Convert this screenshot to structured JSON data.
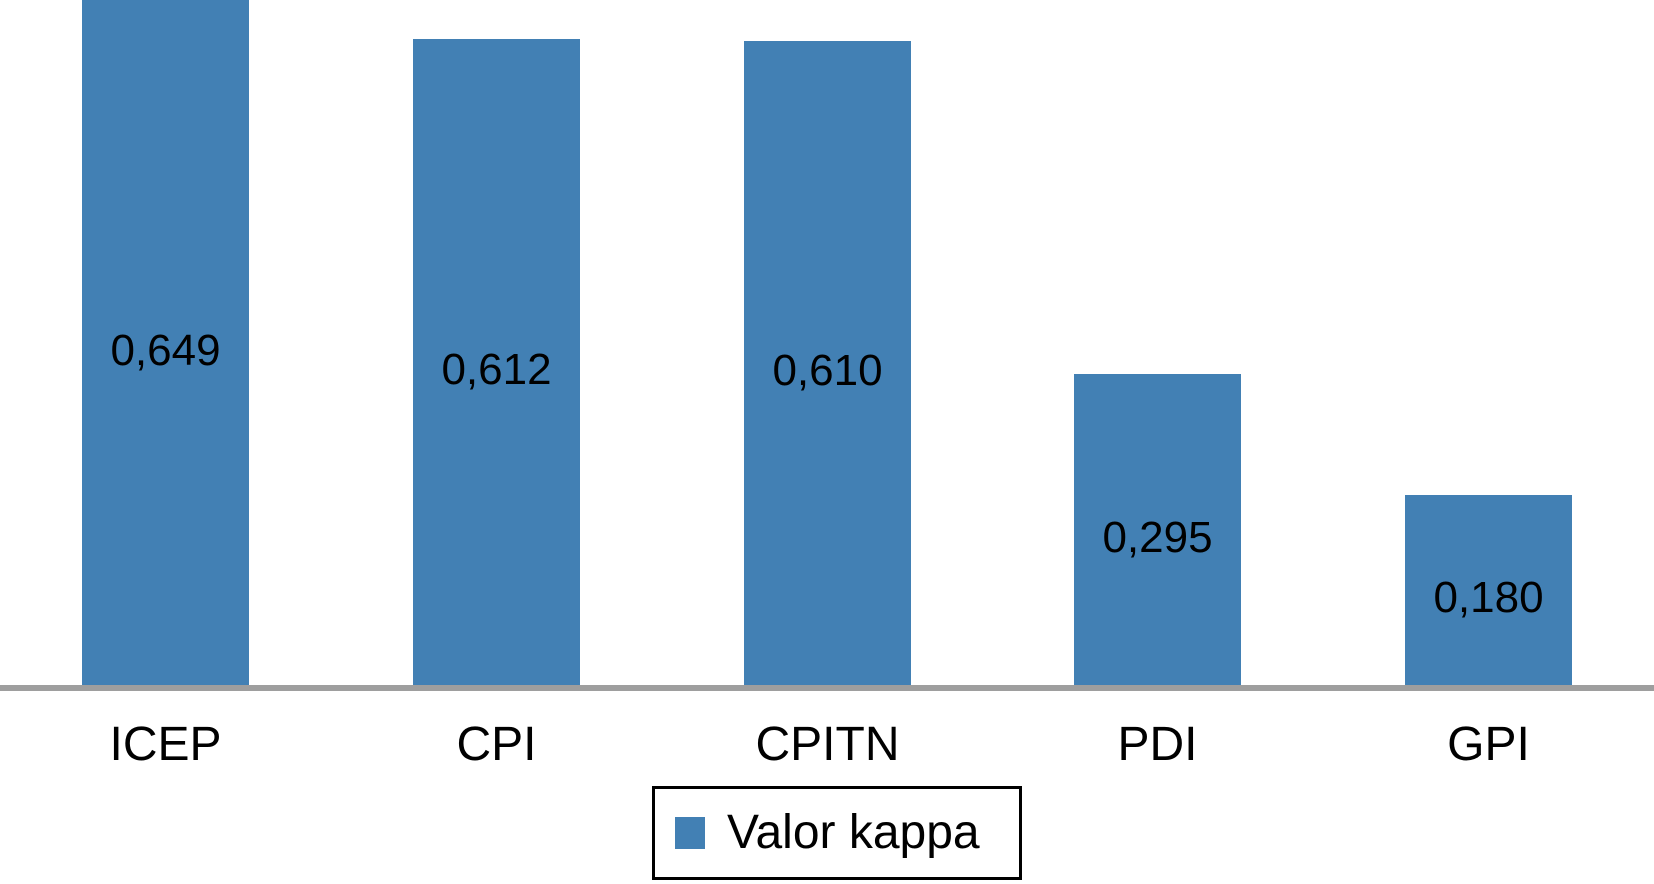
{
  "chart_data": {
    "type": "bar",
    "categories": [
      "ICEP",
      "CPI",
      "CPITN",
      "PDI",
      "GPI"
    ],
    "values": [
      0.649,
      0.612,
      0.61,
      0.295,
      0.18
    ],
    "value_labels": [
      "0,649",
      "0,612",
      "0,610",
      "0,295",
      "0,180"
    ],
    "series": [
      {
        "name": "Valor kappa",
        "values": [
          0.649,
          0.612,
          0.61,
          0.295,
          0.18
        ]
      }
    ],
    "title": "",
    "xlabel": "",
    "ylabel": "",
    "ylim": [
      0,
      0.649
    ],
    "grid": false,
    "legend_position": "bottom-center",
    "legend_entries": [
      "Valor kappa"
    ],
    "bar_color": "#4280b4",
    "axis_line_color": "#9e9e9e",
    "text_color": "#000000",
    "background_color": "#ffffff",
    "note": "top of tallest bar (ICEP) is flush with top edge of image"
  },
  "legend": {
    "label": "Valor kappa"
  }
}
